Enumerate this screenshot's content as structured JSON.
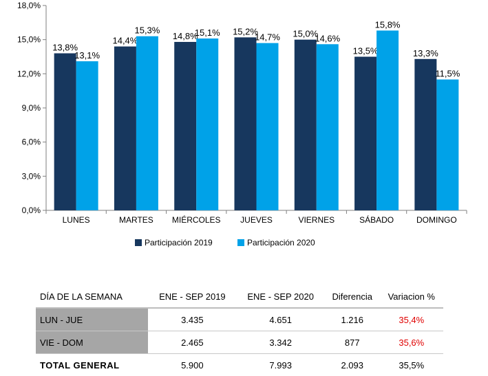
{
  "chart_data": {
    "type": "bar",
    "categories": [
      "LUNES",
      "MARTES",
      "MIÉRCOLES",
      "JUEVES",
      "VIERNES",
      "SÁBADO",
      "DOMINGO"
    ],
    "series": [
      {
        "name": "Participación 2019",
        "values": [
          13.8,
          14.4,
          14.8,
          15.2,
          15.0,
          13.5,
          13.3
        ],
        "labels": [
          "13,8%",
          "14,4%",
          "14,8%",
          "15,2%",
          "15,0%",
          "13,5%",
          "13,3%"
        ],
        "color": "#17375e"
      },
      {
        "name": "Participación 2020",
        "values": [
          13.1,
          15.3,
          15.1,
          14.7,
          14.6,
          15.8,
          11.5
        ],
        "labels": [
          "13,1%",
          "15,3%",
          "15,1%",
          "14,7%",
          "14,6%",
          "15,8%",
          "11,5%"
        ],
        "color": "#00a2e8"
      }
    ],
    "ylim": [
      0,
      18
    ],
    "yticks": [
      "0,0%",
      "3,0%",
      "6,0%",
      "9,0%",
      "12,0%",
      "15,0%",
      "18,0%"
    ],
    "grid": false,
    "legend_position": "bottom"
  },
  "table": {
    "headers": [
      "DÍA DE LA SEMANA",
      "ENE - SEP 2019",
      "ENE - SEP 2020",
      "Diferencia",
      "Variacion %"
    ],
    "rows": [
      {
        "label": "LUN - JUE",
        "v2019": "3.435",
        "v2020": "4.651",
        "diff": "1.216",
        "var": "35,4%"
      },
      {
        "label": "VIE - DOM",
        "v2019": "2.465",
        "v2020": "3.342",
        "diff": "877",
        "var": "35,6%"
      }
    ],
    "total": {
      "label": "TOTAL GENERAL",
      "v2019": "5.900",
      "v2020": "7.993",
      "diff": "2.093",
      "var": "35,5%"
    },
    "variation_color": "#e00000"
  }
}
